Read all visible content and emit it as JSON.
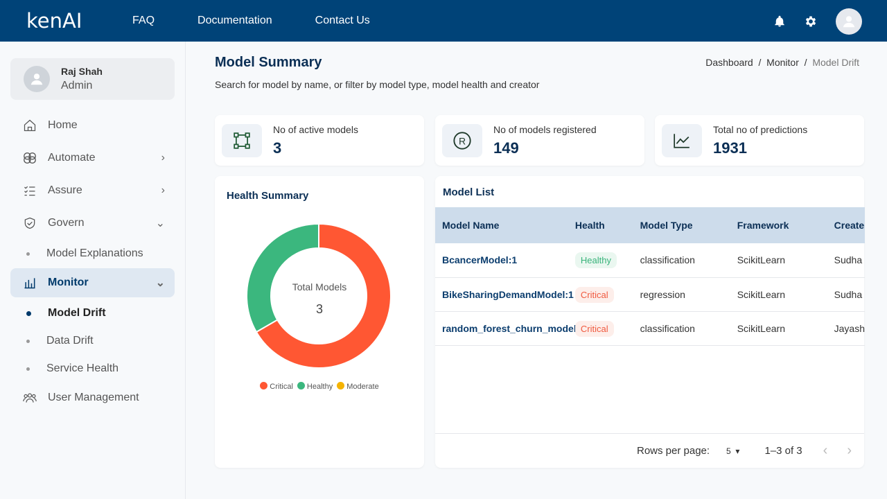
{
  "header": {
    "logo": "kenAI",
    "nav": [
      "FAQ",
      "Documentation",
      "Contact Us"
    ]
  },
  "user": {
    "name": "Raj Shah",
    "role": "Admin"
  },
  "sidebar": {
    "items": [
      {
        "label": "Home",
        "icon": "home-icon"
      },
      {
        "label": "Automate",
        "icon": "brain-icon"
      },
      {
        "label": "Assure",
        "icon": "checklist-icon"
      },
      {
        "label": "Govern",
        "icon": "shield-icon"
      },
      {
        "label": "Monitor",
        "icon": "bar-chart-icon"
      },
      {
        "label": "User Management",
        "icon": "users-icon"
      }
    ],
    "govern_sub": [
      "Model Explanations"
    ],
    "monitor_sub": [
      "Model Drift",
      "Data Drift",
      "Service Health"
    ]
  },
  "page": {
    "title": "Model Summary",
    "description": "Search for model by name, or filter by model type, model health and creator",
    "breadcrumb": [
      "Dashboard",
      "Monitor",
      "Model Drift"
    ]
  },
  "stats": [
    {
      "label": "No of active models",
      "value": "3"
    },
    {
      "label": "No of models registered",
      "value": "149"
    },
    {
      "label": "Total no of predictions",
      "value": "1931"
    }
  ],
  "health": {
    "title": "Health Summary",
    "center_label": "Total Models",
    "total": "3",
    "chart_data": {
      "type": "pie",
      "categories": [
        "Critical",
        "Healthy",
        "Moderate"
      ],
      "values": [
        2,
        1,
        0
      ],
      "colors": [
        "#ff5733",
        "#3bb77e",
        "#f5b300"
      ],
      "legend": "bottom"
    }
  },
  "model_list": {
    "title": "Model List",
    "columns": [
      "Model Name",
      "Health",
      "Model Type",
      "Framework",
      "Create"
    ],
    "rows": [
      [
        "BcancerModel:1",
        "Healthy",
        "classification",
        "ScikitLearn",
        "Sudha"
      ],
      [
        "BikeSharingDemandModel:1",
        "Critical",
        "regression",
        "ScikitLearn",
        "Sudha"
      ],
      [
        "random_forest_churn_model:",
        "Critical",
        "classification",
        "ScikitLearn",
        "Jayash"
      ]
    ],
    "rows_per_page_label": "Rows per page:",
    "rows_per_page": "5",
    "range": "1–3 of 3"
  },
  "colors": {
    "header": "#004378",
    "healthy": "#3bb77e",
    "critical": "#ff5733"
  }
}
